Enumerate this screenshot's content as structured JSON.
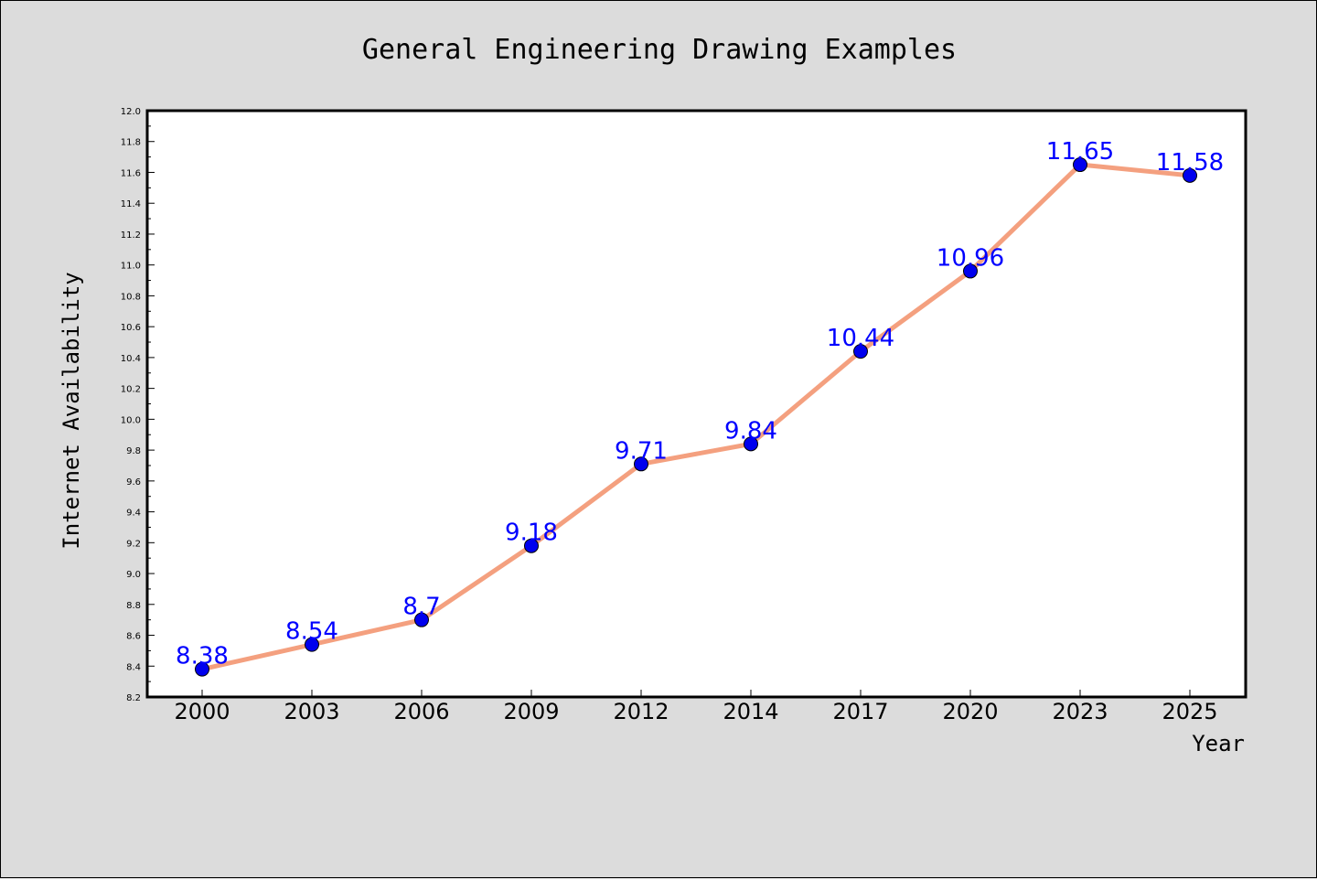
{
  "chart_data": {
    "type": "line",
    "title": "General Engineering Drawing Examples",
    "xlabel": "Year",
    "ylabel": "Internet Availability",
    "categories": [
      "2000",
      "2003",
      "2006",
      "2009",
      "2012",
      "2014",
      "2017",
      "2020",
      "2023",
      "2025"
    ],
    "series": [
      {
        "values": [
          8.38,
          8.54,
          8.7,
          9.18,
          9.71,
          9.84,
          10.44,
          10.96,
          11.65,
          11.58
        ],
        "labels": [
          "8.38",
          "8.54",
          "8.7",
          "9.18",
          "9.71",
          "9.84",
          "10.44",
          "10.96",
          "11.65",
          "11.58"
        ]
      }
    ],
    "ylim": [
      8.2,
      12.0
    ],
    "yticks": [
      "8.2",
      "8.4",
      "8.6",
      "8.8",
      "9.0",
      "9.2",
      "9.4",
      "9.6",
      "9.8",
      "10.0",
      "10.2",
      "10.4",
      "10.6",
      "10.8",
      "11.0",
      "11.2",
      "11.4",
      "11.6",
      "11.8",
      "12.0"
    ],
    "grid": false,
    "legend": "none",
    "colors": {
      "line": "#f4a07f",
      "marker": "#0000ee",
      "label": "#0000ff",
      "figure_bg": "#dcdcdc",
      "plot_bg": "#ffffff"
    }
  }
}
